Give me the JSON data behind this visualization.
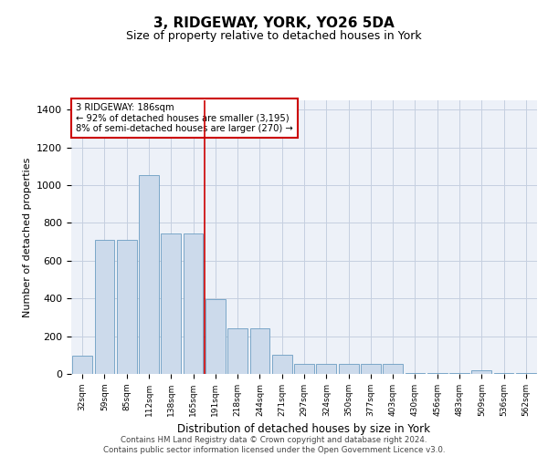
{
  "title": "3, RIDGEWAY, YORK, YO26 5DA",
  "subtitle": "Size of property relative to detached houses in York",
  "xlabel": "Distribution of detached houses by size in York",
  "ylabel": "Number of detached properties",
  "annotation_line1": "3 RIDGEWAY: 186sqm",
  "annotation_line2": "← 92% of detached houses are smaller (3,195)",
  "annotation_line3": "8% of semi-detached houses are larger (270) →",
  "categories": [
    "32sqm",
    "59sqm",
    "85sqm",
    "112sqm",
    "138sqm",
    "165sqm",
    "191sqm",
    "218sqm",
    "244sqm",
    "271sqm",
    "297sqm",
    "324sqm",
    "350sqm",
    "377sqm",
    "403sqm",
    "430sqm",
    "456sqm",
    "483sqm",
    "509sqm",
    "536sqm",
    "562sqm"
  ],
  "bar_heights": [
    95,
    710,
    710,
    1055,
    745,
    745,
    395,
    240,
    240,
    100,
    55,
    55,
    55,
    55,
    55,
    5,
    5,
    5,
    20,
    5,
    5
  ],
  "bar_color": "#ccdaeb",
  "bar_edge_color": "#6b9dc2",
  "vline_color": "#cc0000",
  "vline_x": 5.5,
  "annotation_box_color": "#cc0000",
  "ylim": [
    0,
    1450
  ],
  "yticks": [
    0,
    200,
    400,
    600,
    800,
    1000,
    1200,
    1400
  ],
  "grid_color": "#c5cfe0",
  "background_color": "#edf1f8",
  "title_fontsize": 11,
  "subtitle_fontsize": 9,
  "footer_line1": "Contains HM Land Registry data © Crown copyright and database right 2024.",
  "footer_line2": "Contains public sector information licensed under the Open Government Licence v3.0."
}
